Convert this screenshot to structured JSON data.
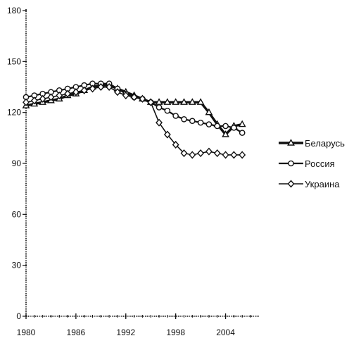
{
  "chart_data": {
    "type": "line",
    "title": "",
    "xlabel": "",
    "ylabel": "",
    "xlim": [
      1980,
      2007
    ],
    "ylim": [
      0,
      180
    ],
    "x_ticks": [
      "1980",
      "1986",
      "1992",
      "1998",
      "2004"
    ],
    "y_ticks": [
      "0",
      "30",
      "60",
      "90",
      "120",
      "150",
      "180"
    ],
    "grid": false,
    "legend_position": "right",
    "x": [
      1980,
      1981,
      1982,
      1983,
      1984,
      1985,
      1986,
      1987,
      1988,
      1989,
      1990,
      1991,
      1992,
      1993,
      1994,
      1995,
      1996,
      1997,
      1998,
      1999,
      2000,
      2001,
      2002,
      2003,
      2004,
      2005,
      2006
    ],
    "series": [
      {
        "name": "Беларусь",
        "marker": "triangle",
        "line_weight": "heavy",
        "values": [
          124,
          125,
          126,
          127,
          128,
          130,
          131,
          133,
          135,
          136,
          136,
          134,
          132,
          130,
          128,
          126,
          126,
          126,
          126,
          126,
          126,
          126,
          120,
          113,
          107,
          112,
          113
        ]
      },
      {
        "name": "Россия",
        "marker": "circle",
        "line_weight": "medium",
        "values": [
          129,
          130,
          131,
          132,
          133,
          134,
          135,
          136,
          137,
          137,
          137,
          134,
          131,
          129,
          128,
          126,
          123,
          121,
          118,
          116,
          115,
          114,
          113,
          112,
          112,
          111,
          108
        ]
      },
      {
        "name": "Украина",
        "marker": "diamond",
        "line_weight": "thin",
        "values": [
          126,
          127,
          128,
          129,
          130,
          131,
          132,
          133,
          134,
          135,
          135,
          132,
          130,
          129,
          128,
          126,
          114,
          107,
          101,
          96,
          95,
          96,
          97,
          96,
          95,
          95,
          95
        ]
      }
    ]
  }
}
